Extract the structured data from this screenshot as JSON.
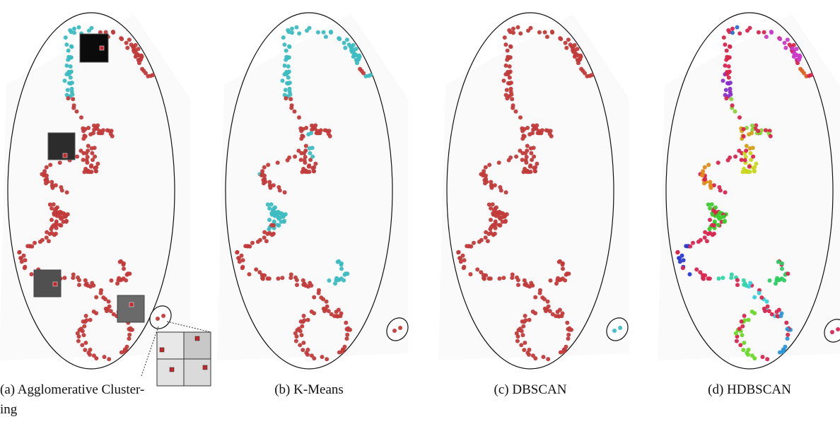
{
  "figure": {
    "panels": [
      {
        "caption": [
          "(a) Agglomerative Cluster-",
          "ing"
        ]
      },
      {
        "caption": [
          "(b) K-Means"
        ]
      },
      {
        "caption": [
          "(c) DBSCAN"
        ]
      },
      {
        "caption": [
          "(d) HDBSCAN"
        ]
      }
    ]
  }
}
